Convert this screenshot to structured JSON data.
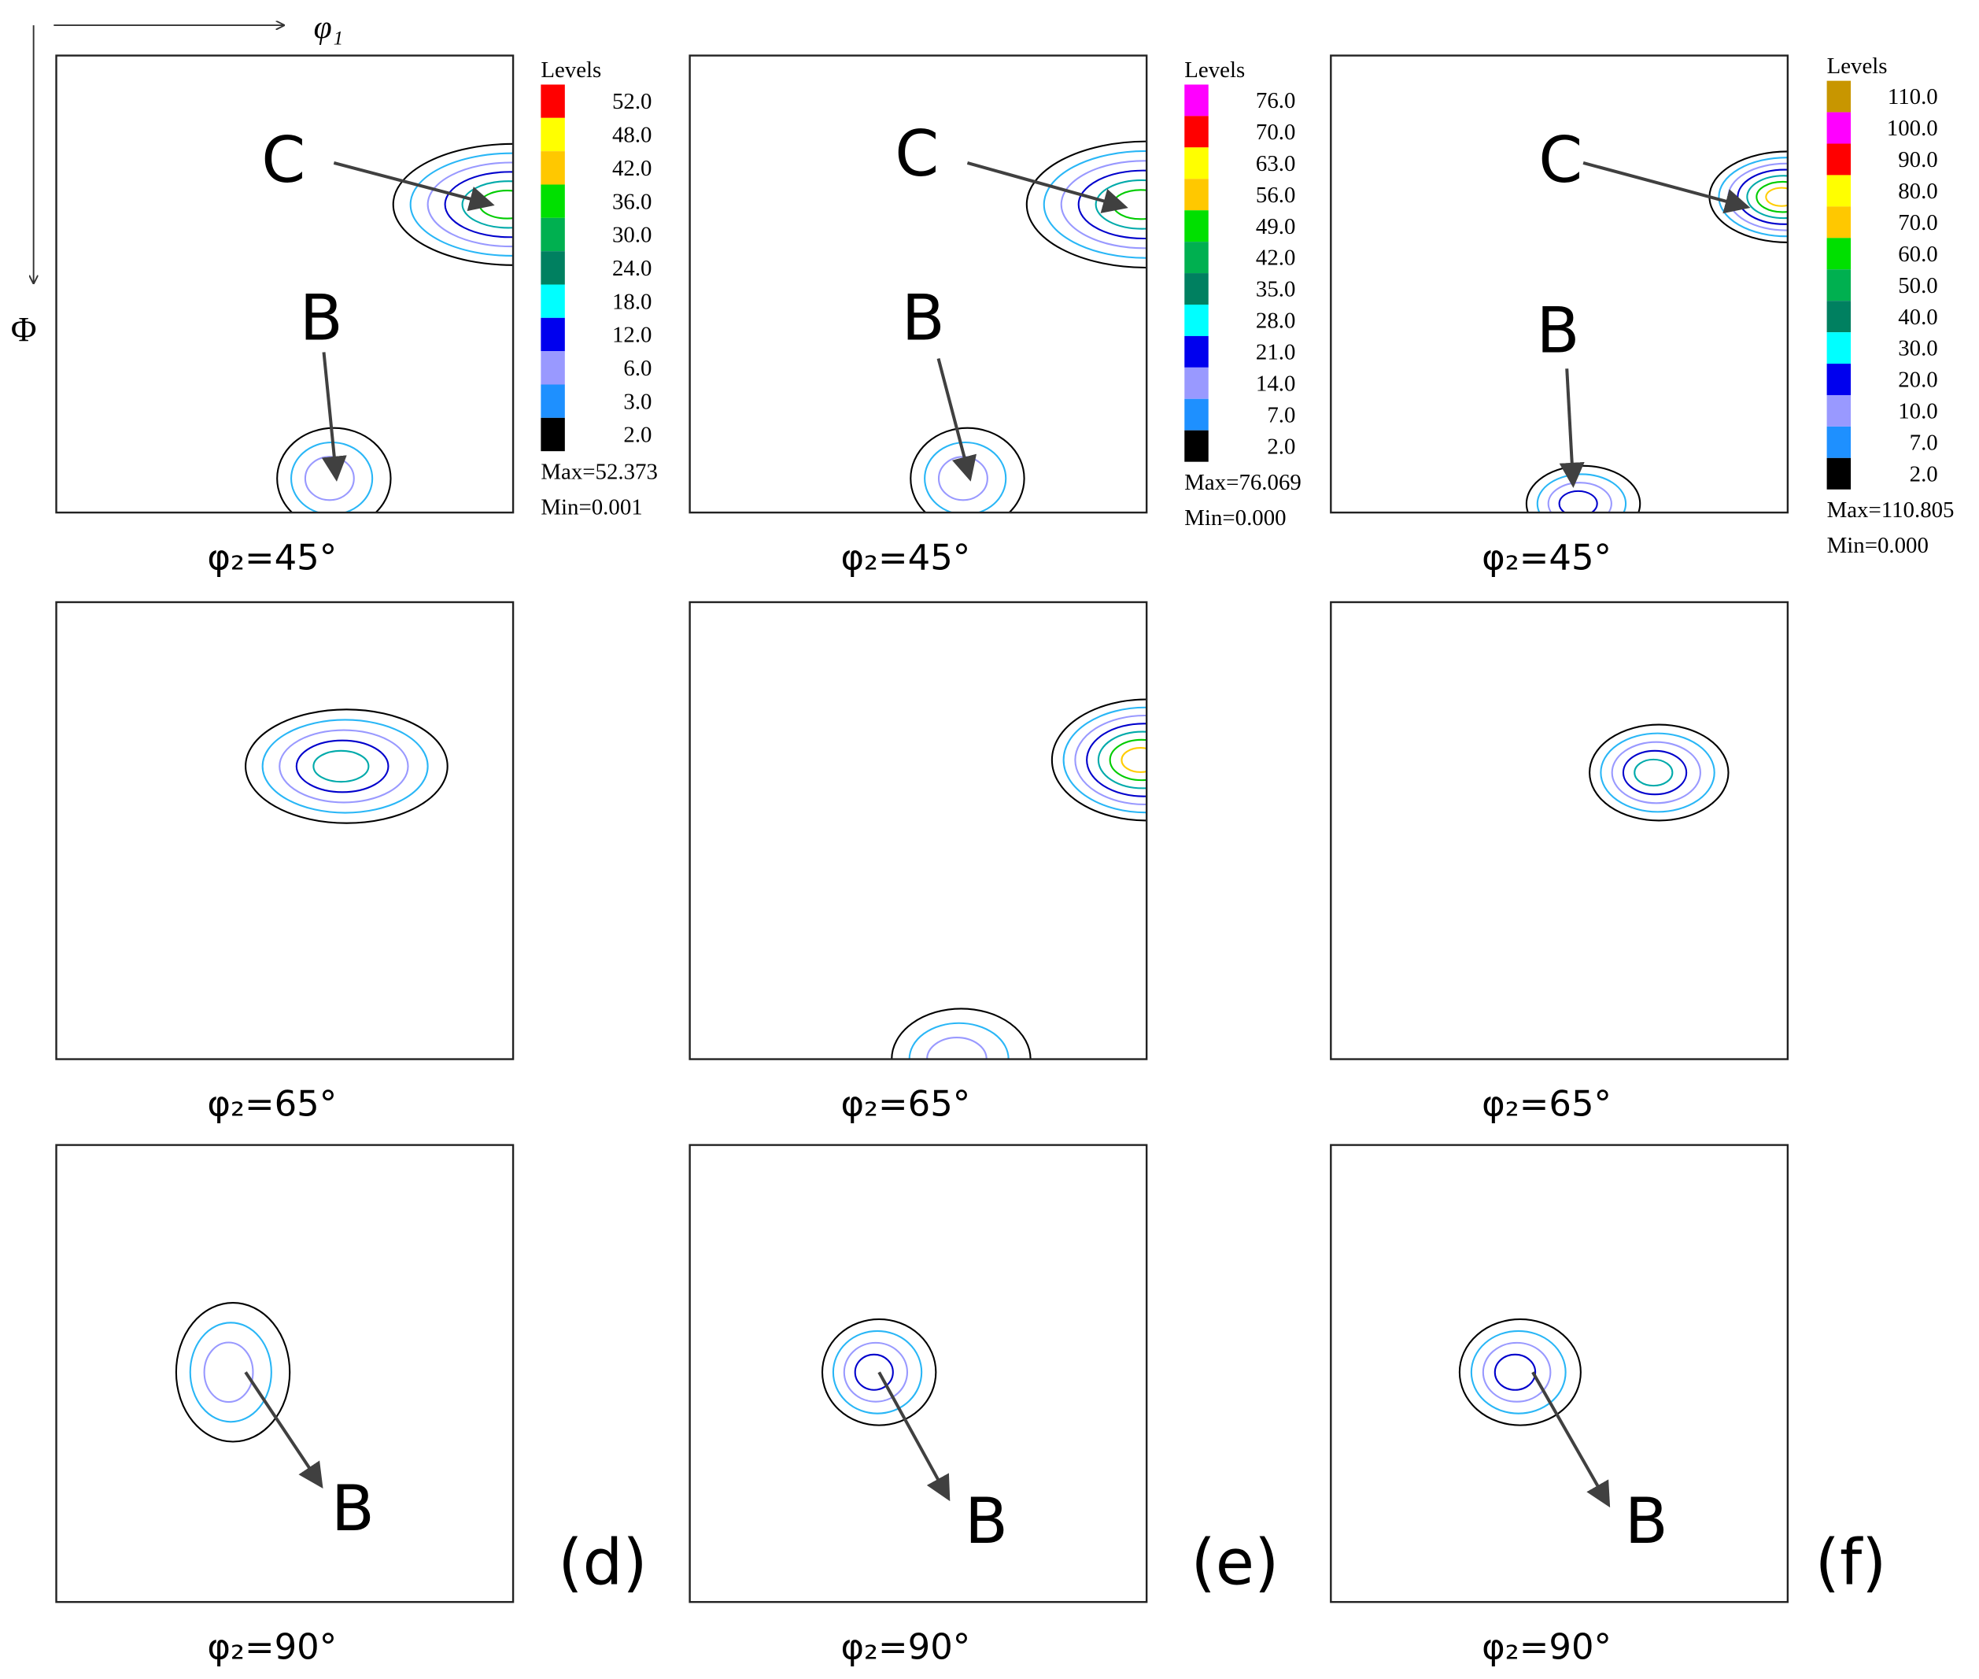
{
  "axes": {
    "x_label": "φ₁",
    "y_label": "Φ"
  },
  "columns": [
    {
      "tag": "(d)",
      "legend": {
        "title": "Levels",
        "levels": [
          {
            "label": "52.0",
            "color": "#ff0000"
          },
          {
            "label": "48.0",
            "color": "#ffff00"
          },
          {
            "label": "42.0",
            "color": "#ffc800"
          },
          {
            "label": "36.0",
            "color": "#00e000"
          },
          {
            "label": "30.0",
            "color": "#00b050"
          },
          {
            "label": "24.0",
            "color": "#008060"
          },
          {
            "label": "18.0",
            "color": "#00ffff"
          },
          {
            "label": "12.0",
            "color": "#0000ee"
          },
          {
            "label": "6.0",
            "color": "#9999ff"
          },
          {
            "label": "3.0",
            "color": "#1e90ff"
          },
          {
            "label": "2.0",
            "color": "#000000"
          }
        ],
        "max": "Max=52.373",
        "min": "Min=0.001"
      },
      "panels": [
        {
          "label": "φ₂=45°",
          "annotations": [
            "C",
            "B"
          ]
        },
        {
          "label": "φ₂=65°",
          "annotations": []
        },
        {
          "label": "φ₂=90°",
          "annotations": [
            "B"
          ]
        }
      ]
    },
    {
      "tag": "(e)",
      "legend": {
        "title": "Levels",
        "levels": [
          {
            "label": "76.0",
            "color": "#ff00ff"
          },
          {
            "label": "70.0",
            "color": "#ff0000"
          },
          {
            "label": "63.0",
            "color": "#ffff00"
          },
          {
            "label": "56.0",
            "color": "#ffc800"
          },
          {
            "label": "49.0",
            "color": "#00e000"
          },
          {
            "label": "42.0",
            "color": "#00b050"
          },
          {
            "label": "35.0",
            "color": "#008060"
          },
          {
            "label": "28.0",
            "color": "#00ffff"
          },
          {
            "label": "21.0",
            "color": "#0000ee"
          },
          {
            "label": "14.0",
            "color": "#9999ff"
          },
          {
            "label": "7.0",
            "color": "#1e90ff"
          },
          {
            "label": "2.0",
            "color": "#000000"
          }
        ],
        "max": "Max=76.069",
        "min": "Min=0.000"
      },
      "panels": [
        {
          "label": "φ₂=45°",
          "annotations": [
            "C",
            "B"
          ]
        },
        {
          "label": "φ₂=65°",
          "annotations": []
        },
        {
          "label": "φ₂=90°",
          "annotations": [
            "B"
          ]
        }
      ]
    },
    {
      "tag": "(f)",
      "legend": {
        "title": "Levels",
        "levels": [
          {
            "label": "110.0",
            "color": "#c89600"
          },
          {
            "label": "100.0",
            "color": "#ff00ff"
          },
          {
            "label": "90.0",
            "color": "#ff0000"
          },
          {
            "label": "80.0",
            "color": "#ffff00"
          },
          {
            "label": "70.0",
            "color": "#ffc800"
          },
          {
            "label": "60.0",
            "color": "#00e000"
          },
          {
            "label": "50.0",
            "color": "#00b050"
          },
          {
            "label": "40.0",
            "color": "#008060"
          },
          {
            "label": "30.0",
            "color": "#00ffff"
          },
          {
            "label": "20.0",
            "color": "#0000ee"
          },
          {
            "label": "10.0",
            "color": "#9999ff"
          },
          {
            "label": "7.0",
            "color": "#1e90ff"
          },
          {
            "label": "2.0",
            "color": "#000000"
          }
        ],
        "max": "Max=110.805",
        "min": "Min=0.000"
      },
      "panels": [
        {
          "label": "φ₂=45°",
          "annotations": [
            "C",
            "B"
          ]
        },
        {
          "label": "φ₂=65°",
          "annotations": []
        },
        {
          "label": "φ₂=90°",
          "annotations": [
            "B"
          ]
        }
      ]
    }
  ]
}
